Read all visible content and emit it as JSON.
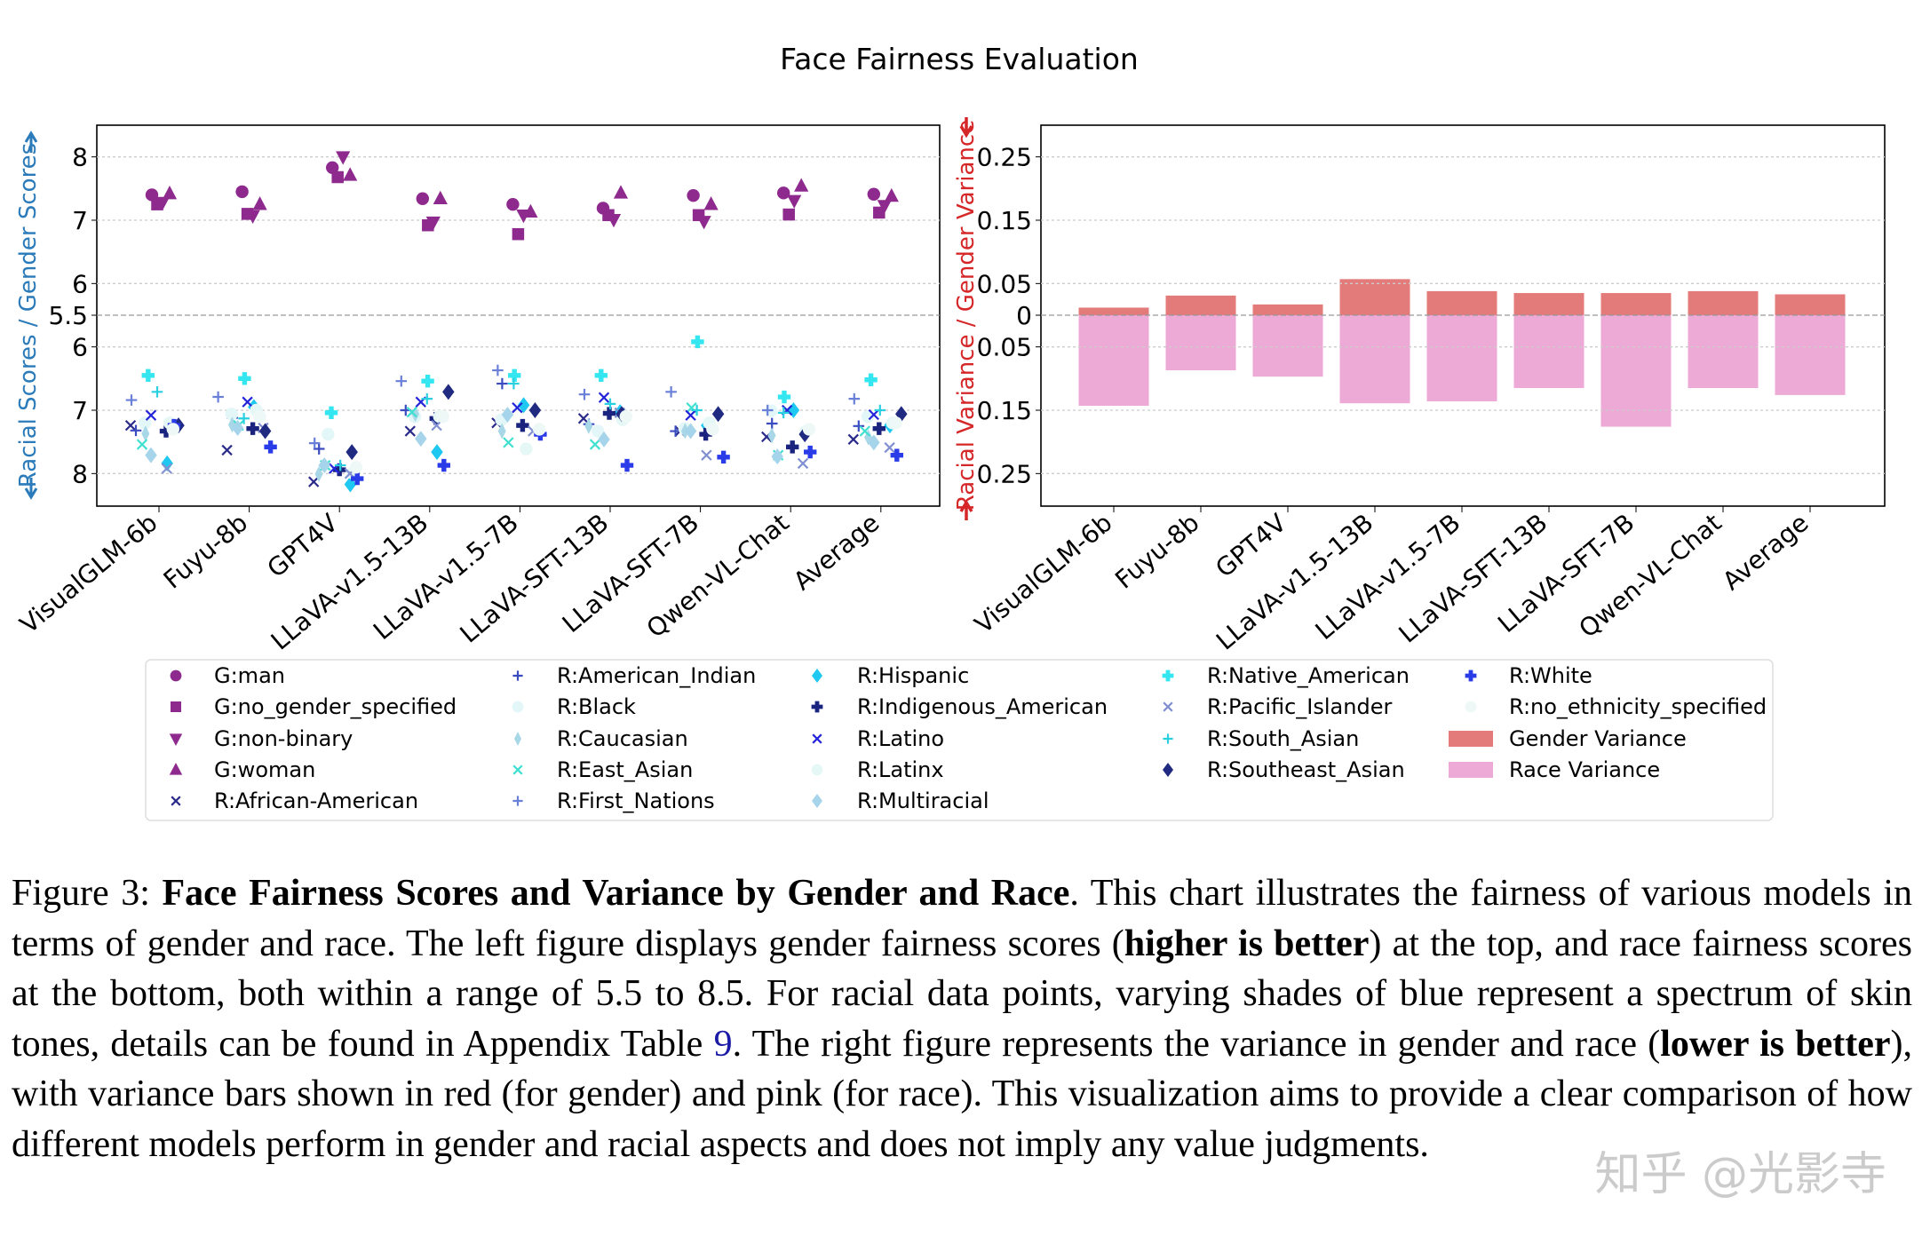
{
  "chart_data": [
    {
      "type": "scatter",
      "title": "Face Fairness Evaluation",
      "ylabel": "Racial Scores / Gender Scores",
      "ylabel_color": "#2b7bba",
      "ylim_gender": [
        5.5,
        8.5
      ],
      "ylim_race": [
        5.5,
        8.5
      ],
      "race_axis_inverted": true,
      "yticks_gender": [
        "8",
        "7",
        "6",
        "5.5"
      ],
      "yticks_race": [
        "6",
        "7",
        "8"
      ],
      "grid": "horizontal dotted",
      "categories": [
        "VisualGLM-6b",
        "Fuyu-8b",
        "GPT4V",
        "LLaVA-v1.5-13B",
        "LLaVA-v1.5-7B",
        "LLaVA-SFT-13B",
        "LLaVA-SFT-7B",
        "Qwen-VL-Chat",
        "Average"
      ],
      "gender_series": [
        {
          "name": "G:man",
          "marker": "circle",
          "color": "#8e2a8e",
          "values": [
            7.4,
            7.45,
            7.83,
            7.34,
            7.25,
            7.19,
            7.39,
            7.43,
            7.41
          ]
        },
        {
          "name": "G:no_gender_specified",
          "marker": "square",
          "color": "#8e2a8e",
          "values": [
            7.25,
            7.1,
            7.68,
            6.92,
            6.78,
            7.08,
            7.08,
            7.09,
            7.12
          ]
        },
        {
          "name": "G:non-binary",
          "marker": "triangle-down",
          "color": "#8e2a8e",
          "values": [
            7.28,
            7.07,
            8.0,
            6.97,
            7.08,
            7.01,
            6.98,
            7.31,
            7.23
          ]
        },
        {
          "name": "G:woman",
          "marker": "triangle-up",
          "color": "#8e2a8e",
          "values": [
            7.42,
            7.25,
            7.71,
            7.34,
            7.13,
            7.43,
            7.25,
            7.54,
            7.38
          ]
        }
      ],
      "race_series": [
        {
          "name": "R:African-American",
          "marker": "x",
          "color": "#2a2a8a",
          "values": [
            7.24,
            7.63,
            8.13,
            7.33,
            7.2,
            7.13,
            7.33,
            7.42,
            7.46
          ]
        },
        {
          "name": "R:American_Indian",
          "marker": "plus",
          "color": "#3b4cc0",
          "values": [
            7.32,
            7.12,
            7.61,
            7.0,
            6.58,
            7.22,
            7.33,
            7.21,
            7.25
          ]
        },
        {
          "name": "R:Black",
          "marker": "circle",
          "color": "#e3f6f8",
          "values": [
            7.2,
            7.06,
            7.38,
            7.1,
            7.15,
            7.33,
            7.29,
            7.01,
            7.1
          ]
        },
        {
          "name": "R:Caucasian",
          "marker": "thin-diamond",
          "color": "#a8d8e8",
          "values": [
            7.37,
            7.23,
            8.01,
            7.06,
            7.33,
            7.25,
            7.33,
            7.4,
            7.43
          ]
        },
        {
          "name": "R:East_Asian",
          "marker": "x",
          "color": "#40e0d0",
          "values": [
            7.54,
            7.24,
            7.87,
            7.03,
            7.51,
            7.54,
            6.96,
            7.71,
            7.33
          ]
        },
        {
          "name": "R:First_Nations",
          "marker": "plus",
          "color": "#6a7fd8",
          "values": [
            6.84,
            6.79,
            7.52,
            6.54,
            6.37,
            6.75,
            6.71,
            7.0,
            6.82
          ]
        },
        {
          "name": "R:Hispanic",
          "marker": "diamond",
          "color": "#1ec8f0",
          "values": [
            7.84,
            6.95,
            8.17,
            7.66,
            6.92,
            7.03,
            7.24,
            7.0,
            7.24
          ]
        },
        {
          "name": "R:Indigenous_American",
          "marker": "filled-plus",
          "color": "#1a237e",
          "values": [
            7.33,
            7.29,
            7.94,
            7.13,
            7.24,
            7.05,
            7.38,
            7.58,
            7.29
          ]
        },
        {
          "name": "R:Latino",
          "marker": "x",
          "color": "#2424d8",
          "values": [
            7.08,
            6.87,
            7.92,
            6.87,
            6.96,
            6.8,
            7.08,
            7.0,
            7.07
          ]
        },
        {
          "name": "R:Latinx",
          "marker": "circle",
          "color": "#e6f8f6",
          "values": [
            7.2,
            7.0,
            7.99,
            7.1,
            7.61,
            7.15,
            7.2,
            7.33,
            7.2
          ]
        },
        {
          "name": "R:Multiracial",
          "marker": "diamond",
          "color": "#a6d4ea",
          "values": [
            7.71,
            7.28,
            7.87,
            7.45,
            7.07,
            7.46,
            7.33,
            7.73,
            7.51
          ]
        },
        {
          "name": "R:Native_American",
          "marker": "filled-plus",
          "color": "#33e6f0",
          "values": [
            6.45,
            6.5,
            7.04,
            6.54,
            6.45,
            6.45,
            5.92,
            6.79,
            6.52
          ]
        },
        {
          "name": "R:Pacific_Islander",
          "marker": "x",
          "color": "#8090d0",
          "values": [
            7.92,
            7.28,
            8.0,
            7.24,
            7.33,
            7.04,
            7.71,
            7.84,
            7.59
          ]
        },
        {
          "name": "R:South_Asian",
          "marker": "plus",
          "color": "#2ad0e0",
          "values": [
            6.71,
            7.13,
            7.87,
            6.82,
            6.58,
            6.9,
            7.0,
            7.04,
            7.0
          ]
        },
        {
          "name": "R:Southeast_Asian",
          "marker": "diamond",
          "color": "#1f2a80",
          "values": [
            7.24,
            7.33,
            7.66,
            6.71,
            7.0,
            7.06,
            7.06,
            7.38,
            7.06
          ]
        },
        {
          "name": "R:White",
          "marker": "filled-plus",
          "color": "#2a3be8",
          "values": [
            7.24,
            7.58,
            8.08,
            7.87,
            7.38,
            7.87,
            7.74,
            7.66,
            7.71
          ]
        },
        {
          "name": "R:no_ethnicity_specified",
          "marker": "circle",
          "color": "#eef8f6",
          "values": [
            7.3,
            7.1,
            7.9,
            7.1,
            7.3,
            7.1,
            7.3,
            7.3,
            7.2
          ]
        }
      ]
    },
    {
      "type": "bar",
      "ylabel": "Racial Variance / Gender Variance",
      "ylabel_color": "#d62728",
      "ylim": [
        -0.3,
        0.3
      ],
      "yticks": [
        "0.25",
        "0.15",
        "0.05",
        "0",
        "0.05",
        "0.15",
        "0.25"
      ],
      "grid": "horizontal dotted",
      "categories": [
        "VisualGLM-6b",
        "Fuyu-8b",
        "GPT4V",
        "LLaVA-v1.5-13B",
        "LLaVA-v1.5-7B",
        "LLaVA-SFT-13B",
        "LLaVA-SFT-7B",
        "Qwen-VL-Chat",
        "Average"
      ],
      "series": [
        {
          "name": "Gender Variance",
          "color": "#e37b7b",
          "direction": "up",
          "values": [
            0.012,
            0.031,
            0.017,
            0.057,
            0.038,
            0.035,
            0.035,
            0.038,
            0.033
          ]
        },
        {
          "name": "Race Variance",
          "color": "#edaad6",
          "direction": "down",
          "values": [
            0.143,
            0.087,
            0.097,
            0.139,
            0.136,
            0.115,
            0.176,
            0.115,
            0.126
          ]
        }
      ]
    }
  ],
  "legend_columns": [
    [
      "G:man",
      "G:no_gender_specified",
      "G:non-binary",
      "G:woman",
      "R:African-American"
    ],
    [
      "R:American_Indian",
      "R:Black",
      "R:Caucasian",
      "R:East_Asian",
      "R:First_Nations"
    ],
    [
      "R:Hispanic",
      "R:Indigenous_American",
      "R:Latino",
      "R:Latinx",
      "R:Multiracial"
    ],
    [
      "R:Native_American",
      "R:Pacific_Islander",
      "R:South_Asian",
      "R:Southeast_Asian"
    ],
    [
      "R:White",
      "R:no_ethnicity_specified",
      "Gender Variance",
      "Race Variance"
    ]
  ],
  "caption": {
    "segments": [
      {
        "t": "Figure 3: "
      },
      {
        "t": "Face Fairness Scores and Variance by Gender and Race",
        "b": true
      },
      {
        "t": ". This chart illustrates the fairness of various models in terms of gender and race. The left figure displays gender fairness scores ("
      },
      {
        "t": "higher is better",
        "b": true
      },
      {
        "t": ") at the top, and race fairness scores at the bottom, both within a range of 5.5 to 8.5. For racial data points, varying shades of blue represent a spectrum of skin tones, details can be found in Appendix Table "
      },
      {
        "t": "9",
        "ref": true
      },
      {
        "t": ". The right figure represents the variance in gender and race ("
      },
      {
        "t": "lower is better",
        "b": true
      },
      {
        "t": "), with variance bars shown in red (for gender) and pink (for race). This visualization aims to provide a clear comparison of how different models perform in gender and racial aspects and does not imply any value judgments."
      }
    ]
  },
  "watermark": "知乎 @光影寺"
}
